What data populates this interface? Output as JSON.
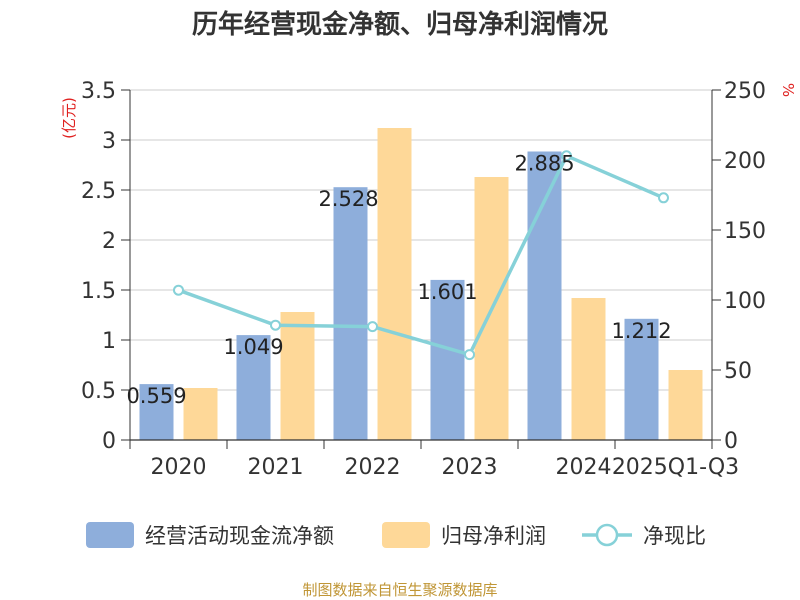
{
  "chart_data": {
    "type": "bar",
    "title": "历年经营现金净额、归母净利润情况",
    "categories": [
      "2020",
      "2021",
      "2022",
      "2023",
      "2024",
      "2025Q1-Q3"
    ],
    "series": [
      {
        "name": "经营活动现金流净额",
        "kind": "bar",
        "axis": "left",
        "color": "#8eaedb",
        "values": [
          0.559,
          1.049,
          2.528,
          1.601,
          2.885,
          1.212
        ],
        "labels": [
          "0.559",
          "1.049",
          "2.528",
          "1.601",
          "2.885",
          "1.212"
        ]
      },
      {
        "name": "归母净利润",
        "kind": "bar",
        "axis": "left",
        "color": "#fed898",
        "values": [
          0.52,
          1.28,
          3.12,
          2.63,
          1.42,
          0.7
        ]
      },
      {
        "name": "净现比",
        "kind": "line",
        "axis": "right",
        "color": "#86d1d8",
        "values": [
          107,
          82,
          81,
          61,
          203,
          173
        ]
      }
    ],
    "y_left": {
      "unit": "(亿元)",
      "min": 0,
      "max": 3.5,
      "ticks": [
        "0",
        "0.5",
        "1",
        "1.5",
        "2",
        "2.5",
        "3",
        "3.5"
      ],
      "tick_values": [
        0,
        0.5,
        1,
        1.5,
        2,
        2.5,
        3,
        3.5
      ]
    },
    "y_right": {
      "unit": "%",
      "min": 0,
      "max": 250,
      "ticks": [
        "0",
        "50",
        "100",
        "150",
        "200",
        "250"
      ],
      "tick_values": [
        0,
        50,
        100,
        150,
        200,
        250
      ]
    },
    "grid": true,
    "legend_position": "bottom"
  },
  "source": "制图数据来自恒生聚源数据库"
}
